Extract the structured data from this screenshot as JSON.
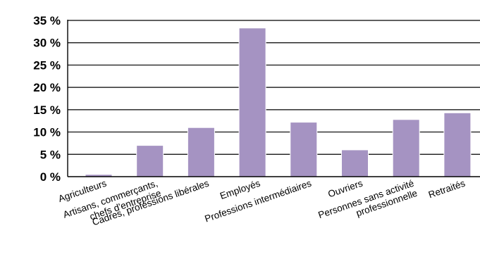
{
  "chart_data": {
    "type": "bar",
    "categories": [
      [
        "Agriculteurs"
      ],
      [
        "Artisans, commerçants,",
        "chefs d'entreprise"
      ],
      [
        "Cadres, professions libérales"
      ],
      [
        "Employés"
      ],
      [
        "Professions intermédiaires"
      ],
      [
        "Ouvriers"
      ],
      [
        "Personnes sans activité",
        "professionnelle"
      ],
      [
        "Retraités"
      ]
    ],
    "values": [
      0.5,
      7,
      11,
      33.3,
      12.2,
      6,
      12.8,
      14.3
    ],
    "ylim": [
      0,
      35
    ],
    "yticks": [
      0,
      5,
      10,
      15,
      20,
      25,
      30,
      35
    ],
    "ytick_labels": [
      "0 %",
      "5 %",
      "10 %",
      "15 %",
      "20 %",
      "25 %",
      "30 %",
      "35 %"
    ],
    "grid": true,
    "bar_color": "#a593c2",
    "title": "",
    "xlabel": "",
    "ylabel": ""
  }
}
